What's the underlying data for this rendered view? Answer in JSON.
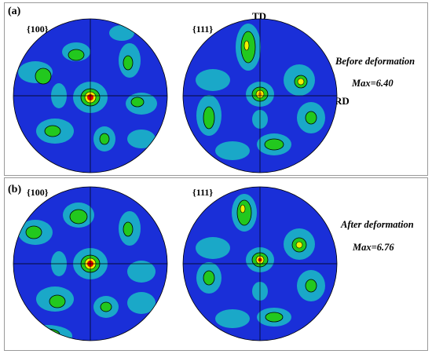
{
  "panels": [
    {
      "label": "(a)",
      "plane_left": "{100}",
      "plane_right": "{111}",
      "caption": "Before deformation",
      "max_text": "Max=6.40",
      "axis_top": "TD",
      "axis_right": "RD"
    },
    {
      "label": "(b)",
      "plane_left": "{100}",
      "plane_right": "{111}",
      "caption": "After deformation",
      "max_text": "Max=6.76"
    }
  ],
  "colors": {
    "background_blue": "#1a2fd8",
    "mid_cyan": "#1aa8c8",
    "high_green": "#22c81e",
    "peak_yellow": "#f0f000",
    "peak_orange": "#ff8c00",
    "peak_red": "#e00000",
    "contour": "#000000"
  }
}
